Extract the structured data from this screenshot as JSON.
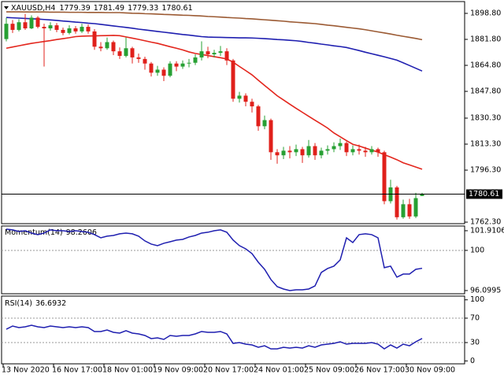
{
  "chart_data": [
    {
      "type": "candlestick",
      "title": "XAUUSD,H4",
      "open": [
        1882.0,
        1892.0,
        1888.0,
        1893.0,
        1889.0,
        1896.0,
        1890.0,
        1889.0,
        1891.0,
        1888.0,
        1886.0,
        1889.0,
        1887.0,
        1890.0,
        1887.0,
        1877.0,
        1876.0,
        1880.0,
        1874.0,
        1871.0,
        1876.0,
        1870.0,
        1869.0,
        1866.0,
        1860.0,
        1862.0,
        1858.0,
        1866.0,
        1864.0,
        1866.0,
        1866.5,
        1870.0,
        1874.0,
        1872.0,
        1873.0,
        1874.0,
        1868.0,
        1843.0,
        1845.0,
        1841.0,
        1838.0,
        1825.0,
        1829.0,
        1808.0,
        1806.0,
        1809.0,
        1808.0,
        1810.0,
        1806.0,
        1812.0,
        1806.0,
        1809.0,
        1810.0,
        1812.0,
        1814.0,
        1808.0,
        1810.0,
        1809.0,
        1808.0,
        1810.0,
        1808.0,
        1776.0,
        1785.0,
        1765.5,
        1774.0,
        1766.0,
        1779.39
      ],
      "high": [
        1896.0,
        1894.5,
        1895.0,
        1898.5,
        1897.5,
        1897.0,
        1892.0,
        1893.0,
        1892.5,
        1889.5,
        1891.0,
        1890.5,
        1892.0,
        1891.5,
        1888.5,
        1880.0,
        1883.0,
        1881.0,
        1876.5,
        1883.0,
        1877.0,
        1872.5,
        1870.5,
        1867.0,
        1864.5,
        1863.5,
        1867.5,
        1867.5,
        1868.0,
        1869.0,
        1872.0,
        1880.5,
        1877.0,
        1875.0,
        1877.5,
        1876.0,
        1869.0,
        1847.5,
        1846.5,
        1843.0,
        1839.0,
        1832.0,
        1830.0,
        1810.0,
        1811.5,
        1812.0,
        1813.0,
        1811.5,
        1816.0,
        1814.0,
        1811.0,
        1812.5,
        1814.5,
        1817.0,
        1815.0,
        1812.5,
        1813.0,
        1811.5,
        1812.0,
        1811.0,
        1809.0,
        1790.0,
        1786.0,
        1777.0,
        1777.5,
        1781.5,
        1781.49
      ],
      "low": [
        1880.5,
        1886.0,
        1887.0,
        1888.0,
        1888.5,
        1889.0,
        1864.0,
        1887.5,
        1886.5,
        1884.5,
        1885.0,
        1885.5,
        1886.0,
        1885.5,
        1875.0,
        1874.0,
        1875.0,
        1871.5,
        1869.0,
        1870.0,
        1866.0,
        1866.5,
        1862.0,
        1857.5,
        1858.0,
        1854.5,
        1857.0,
        1861.0,
        1862.5,
        1863.5,
        1865.0,
        1868.0,
        1869.5,
        1870.0,
        1871.0,
        1865.0,
        1841.0,
        1840.5,
        1838.0,
        1834.0,
        1822.0,
        1823.0,
        1803.0,
        1800.5,
        1803.5,
        1804.0,
        1805.5,
        1801.0,
        1804.5,
        1803.0,
        1804.0,
        1806.5,
        1808.0,
        1809.5,
        1805.5,
        1806.0,
        1806.5,
        1805.0,
        1806.5,
        1805.0,
        1774.0,
        1774.5,
        1764.0,
        1764.5,
        1764.5,
        1765.0,
        1779.33
      ],
      "close": [
        1892.0,
        1888.0,
        1893.0,
        1889.0,
        1896.0,
        1890.0,
        1889.0,
        1891.0,
        1888.0,
        1886.0,
        1889.0,
        1887.0,
        1890.0,
        1887.0,
        1877.0,
        1876.0,
        1880.0,
        1874.0,
        1871.0,
        1876.0,
        1870.0,
        1869.0,
        1866.0,
        1860.0,
        1862.0,
        1858.0,
        1866.0,
        1864.0,
        1866.0,
        1866.5,
        1870.0,
        1874.0,
        1872.0,
        1873.0,
        1874.0,
        1868.0,
        1843.0,
        1845.0,
        1841.0,
        1838.0,
        1825.0,
        1829.0,
        1808.0,
        1806.0,
        1809.0,
        1808.0,
        1810.0,
        1806.0,
        1812.0,
        1806.0,
        1809.0,
        1810.0,
        1812.0,
        1814.0,
        1808.0,
        1810.0,
        1809.0,
        1808.0,
        1810.0,
        1808.0,
        1776.0,
        1785.0,
        1765.5,
        1774.0,
        1766.0,
        1778.0,
        1780.61
      ],
      "up_color": "#27a033",
      "down_color": "#e0201b",
      "series": [
        {
          "color": "#e3261d",
          "values": [
            1876.0,
            1876.8,
            1877.6,
            1878.4,
            1879.2,
            1879.8,
            1880.4,
            1881.0,
            1881.7,
            1882.3,
            1882.9,
            1883.6,
            1883.9,
            1884.0,
            1884.1,
            1884.2,
            1884.3,
            1884.4,
            1884.2,
            1883.4,
            1882.6,
            1881.8,
            1880.9,
            1880.0,
            1879.2,
            1878.1,
            1877.0,
            1876.0,
            1874.9,
            1873.6,
            1872.6,
            1871.9,
            1871.2,
            1870.5,
            1869.8,
            1869.0,
            1866.9,
            1864.1,
            1861.4,
            1858.6,
            1855.1,
            1851.7,
            1848.3,
            1844.9,
            1842.2,
            1839.4,
            1836.7,
            1834.1,
            1831.5,
            1828.9,
            1826.4,
            1823.8,
            1820.6,
            1818.1,
            1815.6,
            1813.2,
            1812.1,
            1810.7,
            1809.4,
            1808.1,
            1806.4,
            1804.8,
            1803.1,
            1801.1,
            1799.7,
            1798.3,
            1796.9
          ]
        },
        {
          "color": "#1f1fb0",
          "values": [
            1896.1,
            1895.9,
            1895.7,
            1895.5,
            1895.3,
            1895.1,
            1894.8,
            1894.5,
            1894.2,
            1893.8,
            1893.5,
            1893.1,
            1892.8,
            1892.4,
            1892.1,
            1891.6,
            1891.1,
            1890.6,
            1890.1,
            1889.6,
            1889.1,
            1888.5,
            1888.0,
            1887.5,
            1887.0,
            1886.5,
            1886.0,
            1885.5,
            1885.0,
            1884.6,
            1884.1,
            1883.6,
            1883.3,
            1883.2,
            1883.1,
            1883.0,
            1882.9,
            1882.8,
            1882.8,
            1882.7,
            1882.5,
            1882.3,
            1882.0,
            1881.7,
            1881.5,
            1881.2,
            1880.9,
            1880.4,
            1879.8,
            1879.3,
            1878.7,
            1878.2,
            1877.6,
            1877.1,
            1876.5,
            1875.5,
            1874.5,
            1873.4,
            1872.4,
            1871.4,
            1870.4,
            1869.3,
            1868.2,
            1866.5,
            1864.7,
            1862.9,
            1861.1
          ]
        },
        {
          "color": "#9b5a33",
          "values": [
            1899.8,
            1899.8,
            1899.8,
            1899.7,
            1899.7,
            1899.7,
            1899.7,
            1899.6,
            1899.6,
            1899.6,
            1899.5,
            1899.5,
            1899.5,
            1899.4,
            1899.4,
            1899.4,
            1899.3,
            1899.3,
            1899.3,
            1899.1,
            1898.9,
            1898.8,
            1898.6,
            1898.5,
            1898.3,
            1898.1,
            1898.0,
            1897.8,
            1897.6,
            1897.5,
            1897.3,
            1897.1,
            1896.8,
            1896.6,
            1896.4,
            1896.1,
            1895.9,
            1895.7,
            1895.4,
            1895.2,
            1894.9,
            1894.6,
            1894.3,
            1894.0,
            1893.7,
            1893.3,
            1893.0,
            1892.7,
            1892.4,
            1892.1,
            1891.6,
            1891.1,
            1890.7,
            1890.2,
            1889.7,
            1889.2,
            1888.7,
            1888.1,
            1887.4,
            1886.7,
            1886.0,
            1885.3,
            1884.5,
            1883.8,
            1883.1,
            1882.4,
            1881.6
          ]
        }
      ],
      "ylim": [
        1761.3,
        1906.0
      ],
      "yticks": [
        {
          "value": 1898.8,
          "label": "1898.80"
        },
        {
          "value": 1881.8,
          "label": "1881.80"
        },
        {
          "value": 1864.8,
          "label": "1864.80"
        },
        {
          "value": 1847.8,
          "label": "1847.80"
        },
        {
          "value": 1830.3,
          "label": "1830.30"
        },
        {
          "value": 1813.3,
          "label": "1813.30"
        },
        {
          "value": 1796.3,
          "label": "1796.30"
        },
        {
          "value": 1762.3,
          "label": "1762.30"
        }
      ]
    },
    {
      "type": "line",
      "title": "Momentum(14)",
      "color": "#1f1fb0",
      "values": [
        102.06,
        101.99,
        101.83,
        101.91,
        101.68,
        101.53,
        101.68,
        101.99,
        101.91,
        101.91,
        101.83,
        101.91,
        101.83,
        101.76,
        101.53,
        101.22,
        101.38,
        101.45,
        101.61,
        101.68,
        101.61,
        101.38,
        100.92,
        100.61,
        100.46,
        100.69,
        100.84,
        101.0,
        101.07,
        101.3,
        101.45,
        101.68,
        101.76,
        101.91,
        101.99,
        101.76,
        101.0,
        100.46,
        100.15,
        99.69,
        98.85,
        98.16,
        97.17,
        96.48,
        96.25,
        96.1,
        96.17,
        96.17,
        96.25,
        96.55,
        97.86,
        98.24,
        98.47,
        99.08,
        101.22,
        100.76,
        101.53,
        101.61,
        101.53,
        101.22,
        98.32,
        98.47,
        97.4,
        97.7,
        97.7,
        98.16,
        98.2606
      ],
      "ylim": [
        95.79,
        102.29
      ],
      "yticks": [
        101.9106,
        100,
        96.0995
      ],
      "levels": [
        100
      ]
    },
    {
      "type": "line",
      "title": "RSI(14)",
      "color": "#1f1fb0",
      "values": [
        51.9,
        57.1,
        54.5,
        55.8,
        58.4,
        55.8,
        54.5,
        57.1,
        55.8,
        54.5,
        55.8,
        54.5,
        55.8,
        54.5,
        48.1,
        48.1,
        50.6,
        46.8,
        45.5,
        49.4,
        45.5,
        44.2,
        41.6,
        36.5,
        37.7,
        35.2,
        41.6,
        40.3,
        41.6,
        41.6,
        44.2,
        48.1,
        46.8,
        46.8,
        48.1,
        44.2,
        28.7,
        30.0,
        27.4,
        26.1,
        22.3,
        24.8,
        19.7,
        19.7,
        22.3,
        21.0,
        22.3,
        21.0,
        24.8,
        22.3,
        26.1,
        27.4,
        28.7,
        31.3,
        27.4,
        28.7,
        28.7,
        28.7,
        30.0,
        27.4,
        19.7,
        26.1,
        21.0,
        27.4,
        24.8,
        31.3,
        36.6932
      ],
      "ylim": [
        -4.8,
        104.8
      ],
      "yticks": [
        100,
        70,
        30,
        0
      ],
      "levels": [
        70,
        30
      ],
      "categories": [
        "13 Nov 2020",
        null,
        null,
        null,
        null,
        null,
        null,
        null,
        "16 Nov 17:00",
        null,
        null,
        null,
        null,
        null,
        null,
        null,
        "18 Nov 01:00",
        null,
        null,
        null,
        null,
        null,
        null,
        null,
        "19 Nov 09:00",
        null,
        null,
        null,
        null,
        null,
        null,
        null,
        "20 Nov 17:00",
        null,
        null,
        null,
        null,
        null,
        null,
        null,
        "24 Nov 01:00",
        null,
        null,
        null,
        null,
        null,
        null,
        null,
        "25 Nov 09:00",
        null,
        null,
        null,
        null,
        null,
        null,
        null,
        "26 Nov 17:00",
        null,
        null,
        null,
        null,
        null,
        null,
        null,
        "30 Nov 09:00",
        null,
        null
      ]
    }
  ]
}
